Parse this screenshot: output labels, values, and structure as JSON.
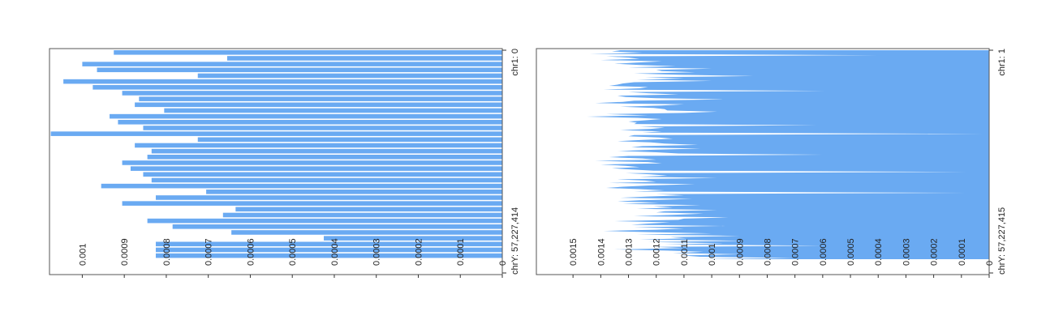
{
  "colors": {
    "bar": "#6aaaf2",
    "frame": "#555555",
    "text": "#222222"
  },
  "chart_data": [
    {
      "type": "bar",
      "orientation": "horizontal",
      "genome_axis": {
        "start_label": "chr1: 0",
        "end_label": "chrY: 57,227,414"
      },
      "value_axis": {
        "range": [
          0,
          0.00108
        ],
        "ticks": [
          0,
          0.0001,
          0.0002,
          0.0003,
          0.0004,
          0.0005,
          0.0006,
          0.0007,
          0.0008,
          0.0009,
          0.001
        ],
        "tick_labels": [
          "0",
          "0.0001",
          "0.0002",
          "0.0003",
          "0.0004",
          "0.0005",
          "0.0006",
          "0.0007",
          "0.0008",
          "0.0009",
          "0.001"
        ]
      },
      "values": [
        0.000925,
        0.000655,
        0.001,
        0.000965,
        0.000725,
        0.001045,
        0.000975,
        0.000905,
        0.000865,
        0.000875,
        0.000805,
        0.000935,
        0.000915,
        0.000855,
        0.001075,
        0.000725,
        0.000875,
        0.000835,
        0.000845,
        0.000905,
        0.000885,
        0.000855,
        0.000835,
        0.000955,
        0.000705,
        0.000825,
        0.000905,
        0.000635,
        0.000665,
        0.000845,
        0.000785,
        0.000645,
        0.000425,
        0.000825,
        0.000825,
        0.000825
      ]
    },
    {
      "type": "area",
      "orientation": "horizontal",
      "genome_axis": {
        "start_label": "chr1: 1",
        "end_label": "chrY: 57,227,415"
      },
      "value_axis": {
        "range": [
          0,
          0.001635
        ],
        "ticks": [
          0,
          0.0001,
          0.0002,
          0.0003,
          0.0004,
          0.0005,
          0.0006,
          0.0007,
          0.0008,
          0.0009,
          0.001,
          0.0011,
          0.0012,
          0.0013,
          0.0014,
          0.0015
        ],
        "tick_labels": [
          "0",
          "0.0001",
          "0.0002",
          "0.0003",
          "0.0004",
          "0.0005",
          "0.0006",
          "0.0007",
          "0.0008",
          "0.0009",
          "0.001",
          "0.0011",
          "0.0012",
          "0.0013",
          "0.0014",
          "0.0015"
        ]
      },
      "values": [
        0.00133,
        0.00136,
        0.00125,
        0.00144,
        0.0004,
        0.00138,
        0.0013,
        0.00126,
        0.0014,
        0.00118,
        0.00127,
        0.00135,
        0.00126,
        0.00113,
        0.0013,
        0.001,
        0.0012,
        0.00118,
        0.00106,
        0.00128,
        0.00111,
        0.00085,
        0.00124,
        0.0011,
        0.00127,
        0.001,
        0.00128,
        0.00132,
        0.00134,
        0.00137,
        0.00123,
        0.00126,
        0.00139,
        0.00058,
        0.0013,
        0.00123,
        0.00112,
        0.00134,
        0.00131,
        0.0012,
        0.00096,
        0.00128,
        0.00132,
        0.00142,
        0.0011,
        0.00118,
        0.00133,
        0.00121,
        0.00117,
        0.00116,
        0.00098,
        0.0011,
        0.00138,
        0.00123,
        0.00145,
        0.00127,
        0.00118,
        0.00124,
        0.0013,
        0.00127,
        0.00128,
        0.00062,
        0.00126,
        0.00117,
        0.00122,
        0.00133,
        0.00118,
        0.00125,
        2e-05,
        0.00128,
        0.0013,
        0.00119,
        0.00114,
        0.00125,
        0.00134,
        0.00122,
        0.00117,
        0.00105,
        0.00125,
        0.00129,
        0.00104,
        0.00121,
        0.00134,
        0.0012,
        0.00112,
        0.0006,
        0.0013,
        0.00137,
        0.00125,
        0.0012,
        0.00142,
        0.00123,
        0.00118,
        0.0014,
        0.00131,
        0.00126,
        0.00136,
        0.00129,
        0.00121,
        8e-05,
        0.00131,
        0.00122,
        0.00116,
        0.00126,
        0.00098,
        0.00134,
        0.00124,
        0.0012,
        0.00137,
        0.00106,
        0.00122,
        0.00132,
        0.00138,
        0.00126,
        0.00117,
        0.00128,
        8e-05,
        0.0012,
        0.0011,
        0.00123,
        0.00133,
        0.00107,
        0.00126,
        0.00134,
        0.00119,
        0.00132,
        0.00104,
        0.00121,
        0.00114,
        0.00127,
        0.00098,
        0.00117,
        0.0012,
        0.00103,
        0.00115,
        0.00128,
        0.00094,
        0.0011,
        0.00112,
        0.00135,
        0.00115,
        0.00123,
        0.00129,
        0.00095,
        0.00128,
        0.0011,
        0.0012,
        0.00139,
        0.00122,
        0.001,
        0.00127,
        0.0009,
        0.00115,
        0.00109,
        0.00126,
        0.00088,
        0.00123,
        0.00096,
        0.00117,
        0.0006,
        0.00121,
        0.0011,
        0.00135,
        0.00116,
        0.00103,
        0.00114,
        0.00089,
        0.00111,
        0.00104,
        0.0007,
        0.00106
      ]
    }
  ]
}
